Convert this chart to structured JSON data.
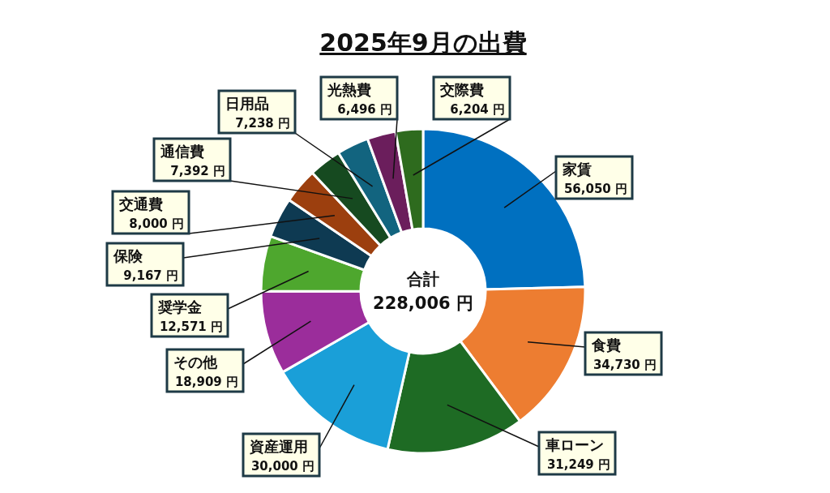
{
  "chart_data": {
    "type": "donut",
    "title": "2025年9月の出費",
    "categories": [
      "家賃",
      "食費",
      "車ローン",
      "資産運用",
      "その他",
      "奨学金",
      "保険",
      "交通費",
      "通信費",
      "日用品",
      "光熱費",
      "交際費"
    ],
    "values": [
      56050,
      34730,
      31249,
      30000,
      18909,
      12571,
      9167,
      8000,
      7392,
      7238,
      6496,
      6204
    ],
    "value_labels": [
      "56,050 円",
      "34,730 円",
      "31,249 円",
      "30,000 円",
      "18,909 円",
      "12,571 円",
      "9,167 円",
      "8,000 円",
      "7,392 円",
      "7,238 円",
      "6,496 円",
      "6,204 円"
    ],
    "colors": [
      "#0070c0",
      "#ed7d31",
      "#1e6b24",
      "#1a9fd8",
      "#9b2d9b",
      "#4ea72e",
      "#0e3a52",
      "#9c3f0e",
      "#164a20",
      "#12647f",
      "#6b1e5c",
      "#2e6b1e"
    ],
    "annotations": [
      "合計",
      "228,006 円"
    ]
  }
}
